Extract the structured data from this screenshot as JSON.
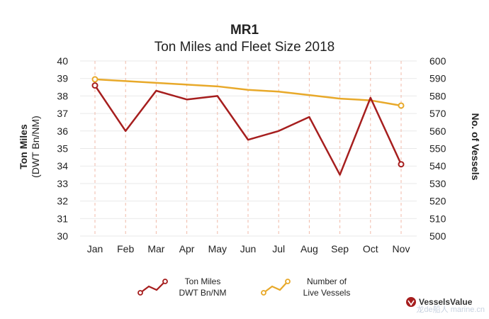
{
  "chart_data": {
    "type": "line",
    "title": "MR1",
    "subtitle": "Ton Miles and Fleet Size 2018",
    "categories": [
      "Jan",
      "Feb",
      "Mar",
      "Apr",
      "May",
      "Jun",
      "Jul",
      "Aug",
      "Sep",
      "Oct",
      "Nov"
    ],
    "series": [
      {
        "name": "Ton Miles DWT Bn/NM",
        "legend_lines": [
          "Ton Miles",
          "DWT Bn/NM"
        ],
        "axis": "left",
        "color": "#a61e1e",
        "values": [
          38.6,
          36.0,
          38.3,
          37.8,
          38.0,
          35.5,
          36.0,
          36.8,
          33.5,
          37.9,
          34.1
        ]
      },
      {
        "name": "Number of Live Vessels",
        "legend_lines": [
          "Number of",
          "Live Vessels"
        ],
        "axis": "right",
        "color": "#e8a92a",
        "values": [
          589.5,
          588.5,
          587.5,
          586.5,
          585.5,
          583.5,
          582.5,
          580.5,
          578.5,
          577.5,
          574.5
        ]
      }
    ],
    "ylabel_left": [
      "Ton Miles",
      "(DWT Bn/NM)"
    ],
    "ylabel_right": "No. of Vessels",
    "ylim_left": [
      30,
      40
    ],
    "ylim_right": [
      500,
      600
    ],
    "yticks_left": [
      30,
      31,
      32,
      33,
      34,
      35,
      36,
      37,
      38,
      39,
      40
    ],
    "yticks_right": [
      500,
      510,
      520,
      530,
      540,
      550,
      560,
      570,
      580,
      590,
      600
    ],
    "grid": true,
    "legend_position": "bottom",
    "source_logo_text": "VesselsValue",
    "watermark_text": "龙de船人 marine.cn"
  }
}
